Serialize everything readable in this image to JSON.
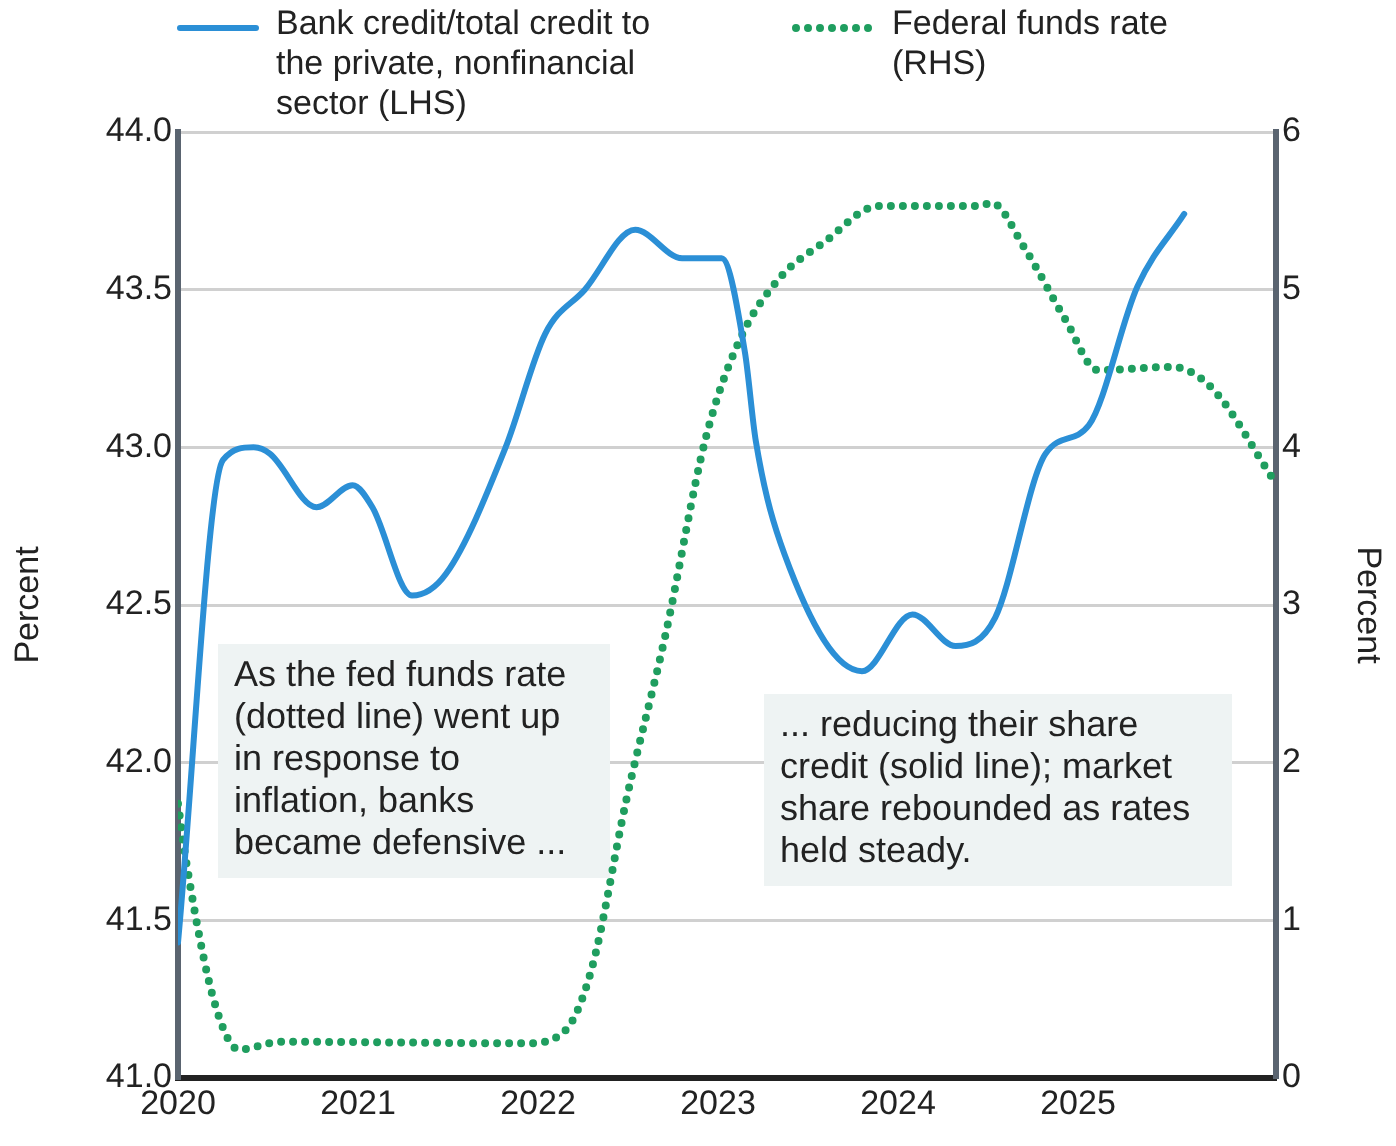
{
  "chart_data": {
    "type": "line",
    "xlim": [
      2020,
      2026.1
    ],
    "xticks": [
      2020,
      2021,
      2022,
      2023,
      2024,
      2025
    ],
    "ylim": [
      41,
      44
    ],
    "yticks": [
      {
        "value": 41,
        "label": "41.0"
      },
      {
        "value": 41.5,
        "label": "41.5"
      },
      {
        "value": 42,
        "label": "42.0"
      },
      {
        "value": 42.5,
        "label": "42.5"
      },
      {
        "value": 43,
        "label": "43.0"
      },
      {
        "value": 43.5,
        "label": "43.5"
      },
      {
        "value": 44,
        "label": "44.0"
      }
    ],
    "y2lim": [
      0,
      6
    ],
    "y2ticks": [
      0,
      1,
      2,
      3,
      4,
      5,
      6
    ],
    "ylabel": "Percent",
    "y2label": "Percent",
    "grid": "y",
    "legend": "top",
    "marker": "none",
    "series": [
      {
        "name": "Bank credit/total credit to the private, nonfinancial sector (LHS)",
        "color": "#2b8fd6",
        "line_style": "solid",
        "axis": "y",
        "x": [
          2020.0,
          2020.25,
          2020.42,
          2020.51,
          2020.77,
          2020.97,
          2021.08,
          2021.3,
          2021.49,
          2021.82,
          2022.04,
          2022.26,
          2022.54,
          2022.8,
          2023.02,
          2023.15,
          2023.21,
          2023.37,
          2023.8,
          2024.08,
          2024.32,
          2024.54,
          2024.82,
          2025.06,
          2025.33,
          2025.59
        ],
        "values": [
          41.43,
          42.96,
          43.0,
          42.98,
          42.81,
          42.88,
          42.81,
          42.53,
          42.6,
          43.0,
          43.36,
          43.5,
          43.69,
          43.6,
          43.6,
          43.3,
          43.02,
          42.66,
          42.29,
          42.47,
          42.37,
          42.46,
          42.98,
          43.07,
          43.51,
          43.74
        ]
      },
      {
        "name": "Federal funds rate (RHS)",
        "color": "#1f9e5f",
        "line_style": "dotted",
        "axis": "y2",
        "x": [
          2020.0,
          2020.05,
          2020.2,
          2020.34,
          2020.57,
          2021.93,
          2022.15,
          2022.3,
          2022.49,
          2022.71,
          2022.93,
          2023.12,
          2023.34,
          2023.6,
          2023.89,
          2024.45,
          2024.52,
          2024.7,
          2024.93,
          2025.11,
          2025.52,
          2025.74,
          2026.1
        ],
        "values": [
          1.74,
          1.34,
          0.49,
          0.18,
          0.23,
          0.22,
          0.3,
          0.7,
          1.76,
          2.82,
          4.05,
          4.68,
          5.07,
          5.31,
          5.53,
          5.53,
          5.55,
          5.27,
          4.81,
          4.49,
          4.51,
          4.38,
          3.77
        ]
      }
    ],
    "annotations": [
      "As the fed funds rate (dotted line) went up in response to inflation, banks became defensive ...",
      "... reducing their share credit (solid line); market share rebounded as rates held steady."
    ]
  }
}
